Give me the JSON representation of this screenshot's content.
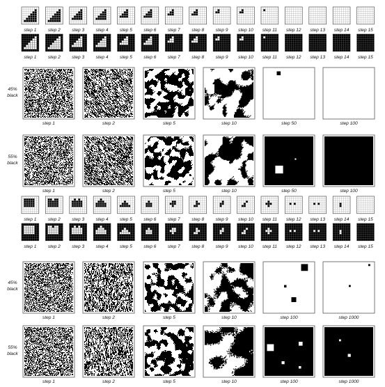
{
  "figure": {
    "small_step_labels": [
      "step 1",
      "step 2",
      "step 3",
      "step 4",
      "step 5",
      "step 6",
      "step 7",
      "step 8",
      "step 9",
      "step 10",
      "step 11",
      "step 12",
      "step 13",
      "step 14",
      "step 15"
    ],
    "group_a": {
      "large_step_labels": [
        "step 1",
        "step 2",
        "step 5",
        "step 10",
        "step 50",
        "step 100"
      ],
      "row_labels": [
        [
          "45%",
          "black"
        ],
        [
          "55%",
          "black"
        ]
      ]
    },
    "group_b": {
      "large_step_labels": [
        "step 1",
        "step 2",
        "step 5",
        "step 10",
        "step 100",
        "step 1000"
      ],
      "row_labels": [
        [
          "45%",
          "black"
        ],
        [
          "55%",
          "black"
        ]
      ]
    }
  },
  "colors": {
    "ink": "#000000",
    "paper": "#ffffff",
    "grid_on_white": "#b4b4b4",
    "grid_on_black": "#555555",
    "frame": "#555555"
  }
}
